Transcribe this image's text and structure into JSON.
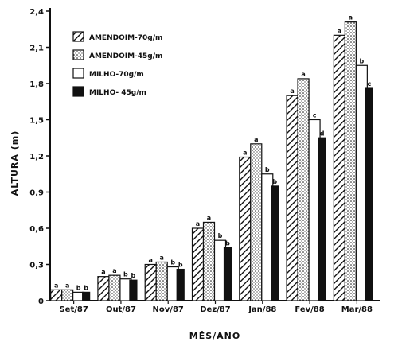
{
  "chart_data": {
    "type": "bar",
    "xlabel": "MÊS/ANO",
    "ylabel": "ALTURA (m)",
    "ylim": [
      0,
      2.4
    ],
    "yticks": [
      "0",
      "0,3",
      "0,6",
      "0,9",
      "1,2",
      "1,5",
      "1,8",
      "2,1",
      "2,4"
    ],
    "grid": false,
    "legend_position": "top-left",
    "categories": [
      "Set/87",
      "Out/87",
      "Nov/87",
      "Dez/87",
      "Jan/88",
      "Fev/88",
      "Mar/88"
    ],
    "series": [
      {
        "name": "AMENDOIM-70g/m",
        "pattern": "hatch",
        "values": [
          0.09,
          0.2,
          0.3,
          0.6,
          1.19,
          1.7,
          2.2
        ],
        "letters": [
          "a",
          "a",
          "a",
          "a",
          "a",
          "a",
          "a"
        ]
      },
      {
        "name": "AMENDOIM-45g/m",
        "pattern": "dots",
        "values": [
          0.09,
          0.21,
          0.32,
          0.65,
          1.3,
          1.84,
          2.31
        ],
        "letters": [
          "a",
          "a",
          "a",
          "a",
          "a",
          "a",
          "a"
        ]
      },
      {
        "name": "MILHO-70g/m",
        "pattern": "white",
        "values": [
          0.07,
          0.18,
          0.28,
          0.5,
          1.05,
          1.5,
          1.95
        ],
        "letters": [
          "b",
          "b",
          "b",
          "b",
          "b",
          "c",
          "b"
        ]
      },
      {
        "name": "MILHO- 45g/m",
        "pattern": "black",
        "values": [
          0.07,
          0.17,
          0.26,
          0.44,
          0.95,
          1.35,
          1.76
        ],
        "letters": [
          "b",
          "b",
          "b",
          "b",
          "b",
          "d",
          "c"
        ]
      }
    ],
    "colors": {
      "ink": "#111111",
      "background": "#ffffff"
    }
  }
}
